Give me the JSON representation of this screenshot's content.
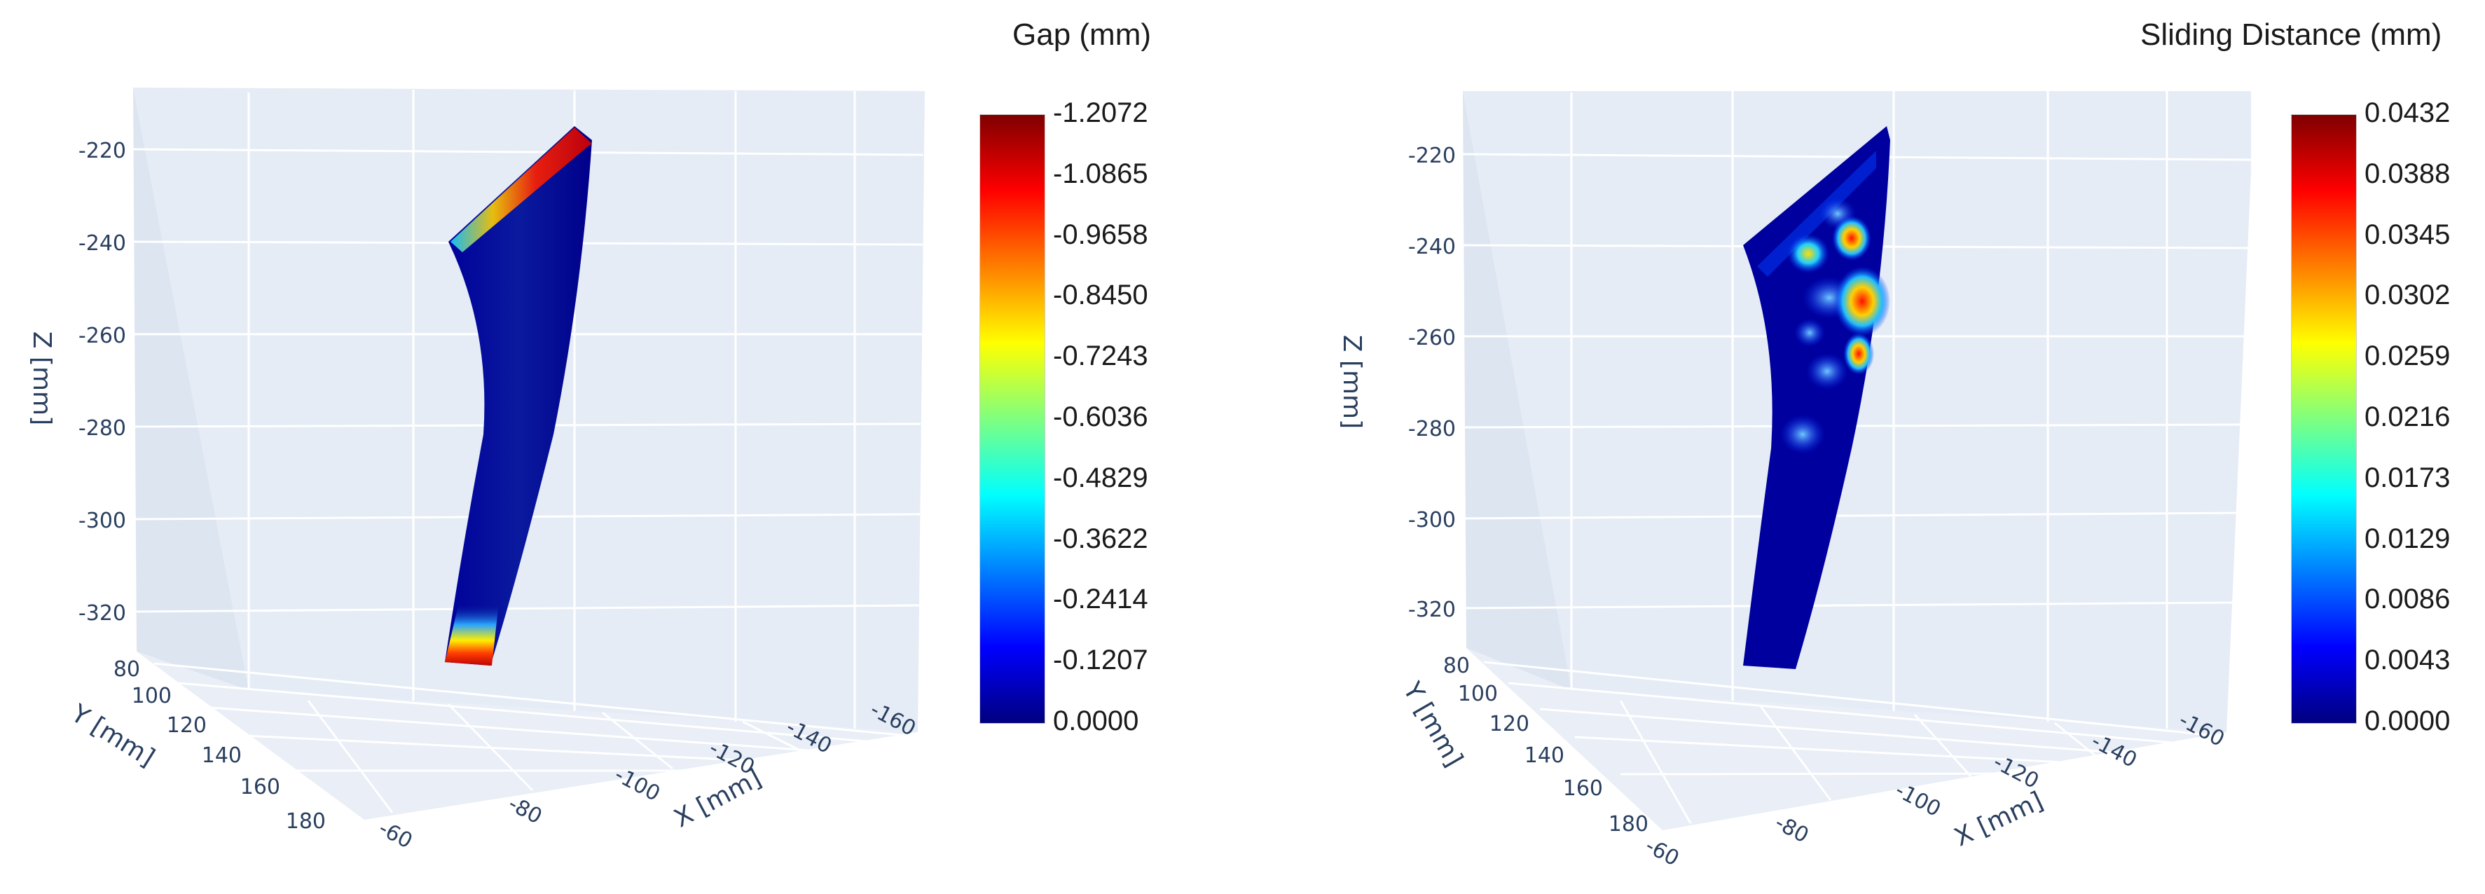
{
  "chart_data": [
    {
      "type": "surface3d",
      "colorbar_title": "Gap (mm)",
      "colorbar_ticks": [
        "-1.2072",
        "-1.0865",
        "-0.9658",
        "-0.8450",
        "-0.7243",
        "-0.6036",
        "-0.4829",
        "-0.3622",
        "-0.2414",
        "-0.1207",
        "0.0000"
      ],
      "colorscale": [
        "#00007f",
        "#0000ff",
        "#007fff",
        "#00ffff",
        "#7fff7f",
        "#ffff00",
        "#ff7f00",
        "#ff0000",
        "#7f0000"
      ],
      "x_axis": {
        "label": "X [mm]",
        "ticks": [
          "-60",
          "-80",
          "-100",
          "-120",
          "-140",
          "-160"
        ]
      },
      "y_axis": {
        "label": "Y [mm]",
        "ticks": [
          "80",
          "100",
          "120",
          "140",
          "160",
          "180"
        ]
      },
      "z_axis": {
        "label": "Z [mm]",
        "ticks": [
          "-220",
          "-240",
          "-260",
          "-280",
          "-300",
          "-320"
        ]
      },
      "hotspots": [
        "top edge",
        "bottom tip"
      ]
    },
    {
      "type": "surface3d",
      "colorbar_title": "Sliding Distance (mm)",
      "colorbar_ticks": [
        "0.0432",
        "0.0388",
        "0.0345",
        "0.0302",
        "0.0259",
        "0.0216",
        "0.0173",
        "0.0129",
        "0.0086",
        "0.0043",
        "0.0000"
      ],
      "colorscale": [
        "#00007f",
        "#0000ff",
        "#007fff",
        "#00ffff",
        "#7fff7f",
        "#ffff00",
        "#ff7f00",
        "#ff0000",
        "#7f0000"
      ],
      "x_axis": {
        "label": "X [mm]",
        "ticks": [
          "-60",
          "-80",
          "-100",
          "-120",
          "-140",
          "-160"
        ]
      },
      "y_axis": {
        "label": "Y [mm]",
        "ticks": [
          "80",
          "100",
          "120",
          "140",
          "160",
          "180"
        ]
      },
      "z_axis": {
        "label": "Z [mm]",
        "ticks": [
          "-220",
          "-240",
          "-260",
          "-280",
          "-300",
          "-320"
        ]
      },
      "hotspots": [
        "upper-mid region"
      ]
    }
  ]
}
